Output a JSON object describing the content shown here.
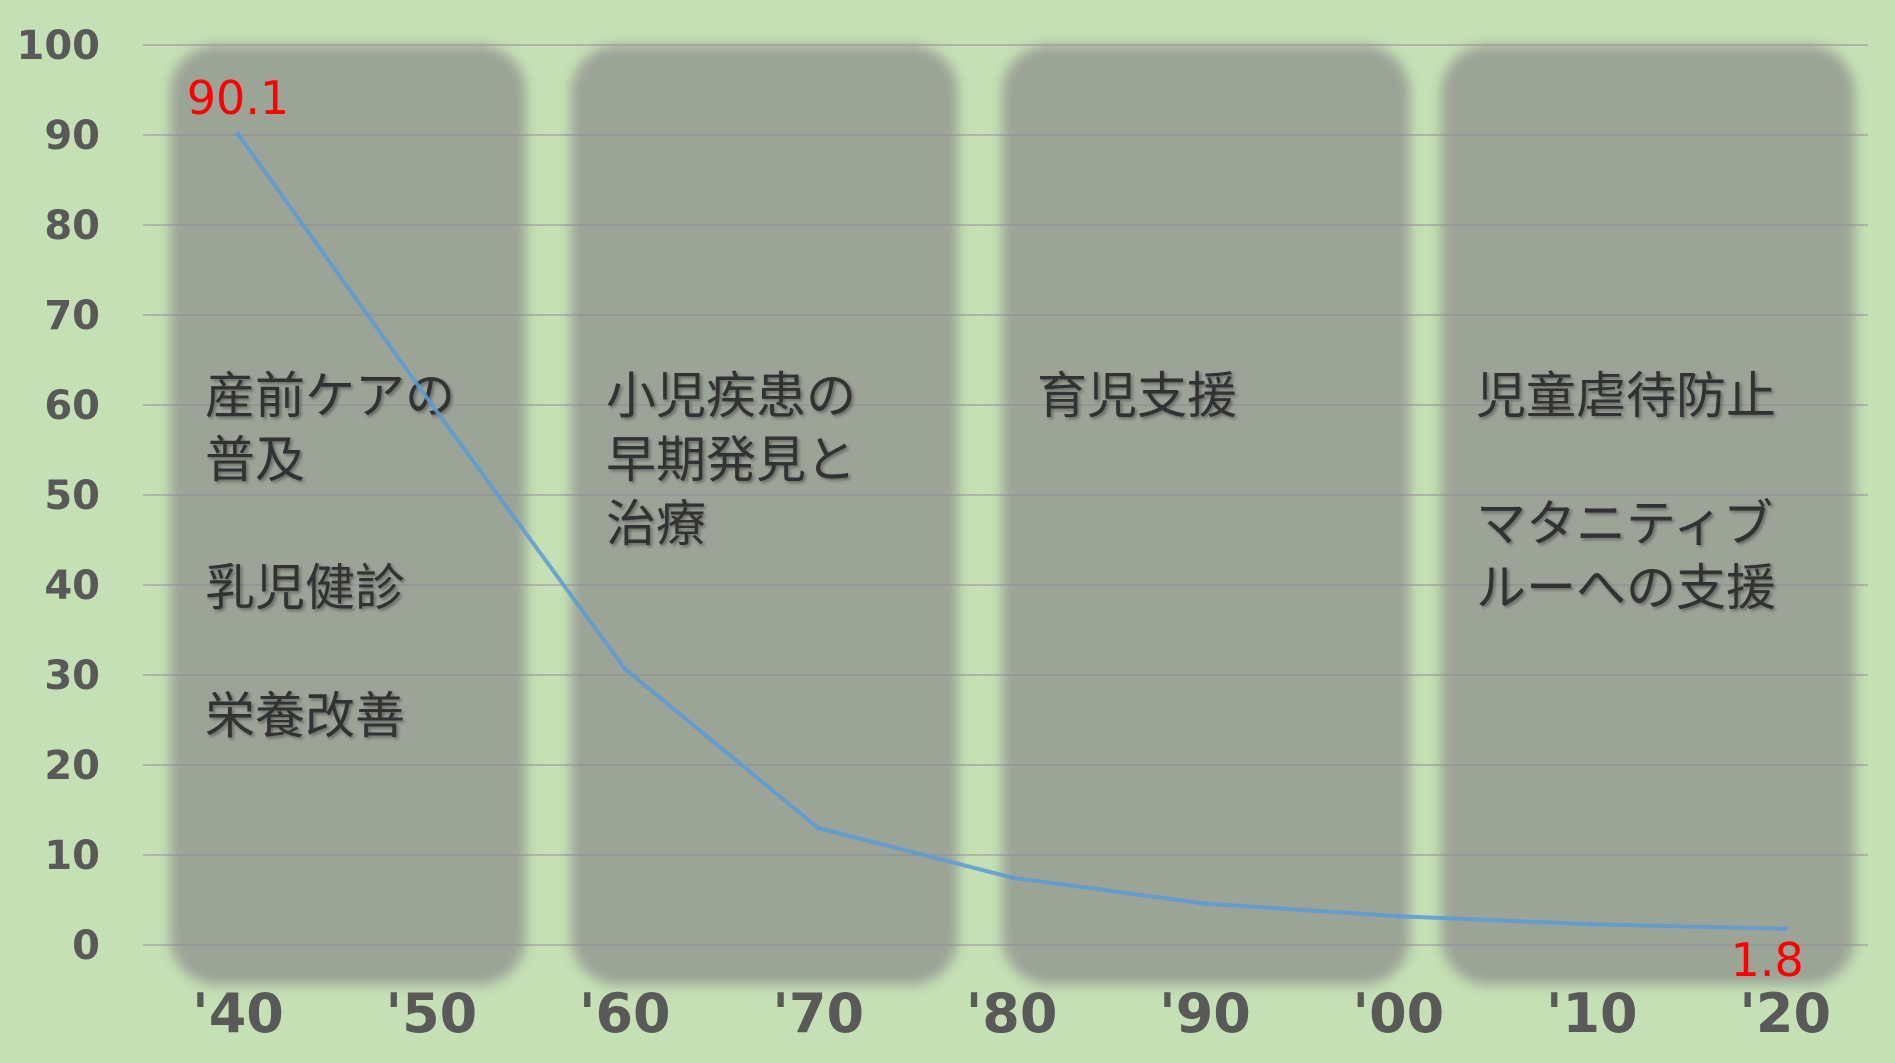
{
  "colors": {
    "background": "#c5e0b4",
    "gridline": "#a6a6a6",
    "line": "#5b9bd5",
    "panel": "#8c8c8c",
    "data_label": "#ff0000",
    "tick": "#595959"
  },
  "chart_data": {
    "type": "line",
    "title": "",
    "xlabel": "",
    "ylabel": "",
    "categories": [
      "'40",
      "'50",
      "'60",
      "'70",
      "'80",
      "'90",
      "'00",
      "'10",
      "'20"
    ],
    "series": [
      {
        "values": [
          90.1,
          60.1,
          30.7,
          13.0,
          7.5,
          4.6,
          3.2,
          2.3,
          1.8
        ]
      }
    ],
    "ylim": [
      0,
      100
    ],
    "yticks": [
      0,
      10,
      20,
      30,
      40,
      50,
      60,
      70,
      80,
      90,
      100
    ],
    "grid": true,
    "data_labels": [
      {
        "index": 0,
        "text": "90.1"
      },
      {
        "index": 8,
        "text": "1.8"
      }
    ]
  },
  "panels": [
    {
      "lines": [
        "産前ケアの",
        "普及",
        "",
        "乳児健診",
        "",
        "栄養改善"
      ]
    },
    {
      "lines": [
        "小児疾患の",
        "早期発見と",
        "治療"
      ]
    },
    {
      "lines": [
        "育児支援"
      ]
    },
    {
      "lines": [
        "児童虐待防止",
        "",
        "マタニティブ",
        "ルーへの支援"
      ]
    }
  ]
}
